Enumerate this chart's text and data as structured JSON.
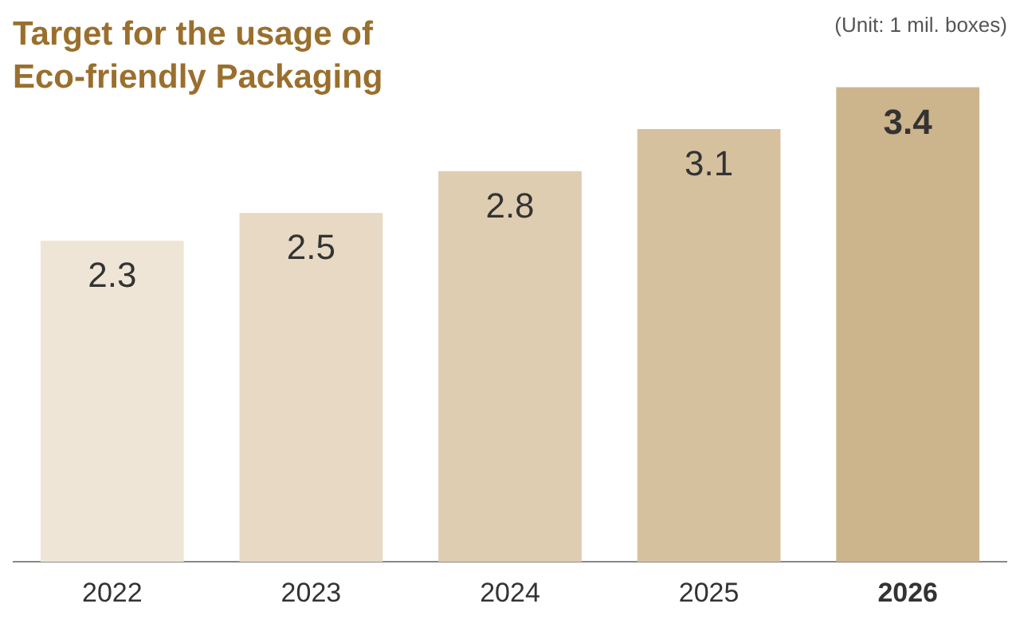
{
  "chart_data": {
    "type": "bar",
    "title": "Target for the usage of Eco-friendly Packaging",
    "annotations": [
      "(Unit: 1 mil. boxes)"
    ],
    "categories": [
      "2022",
      "2023",
      "2024",
      "2025",
      "2026"
    ],
    "values": [
      2.3,
      2.5,
      2.8,
      3.1,
      3.4
    ],
    "colors": [
      "#efe5d6",
      "#e7d9c3",
      "#dfcdb1",
      "#d6c19f",
      "#ccb48c"
    ],
    "data_labels": true,
    "grid": false,
    "legend": false
  }
}
